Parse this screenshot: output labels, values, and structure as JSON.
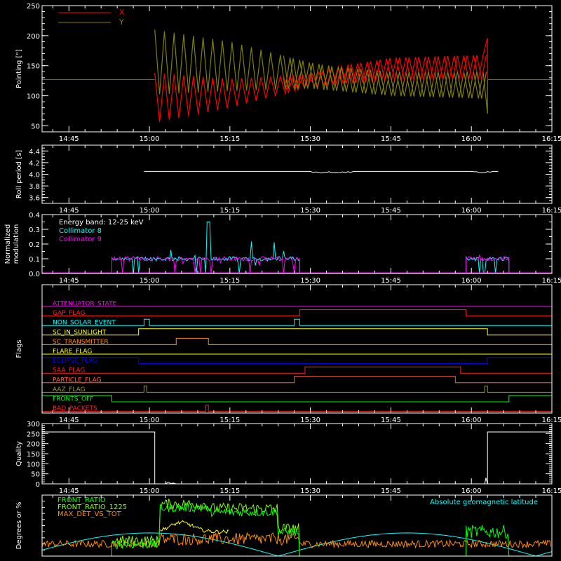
{
  "chart_data": [
    {
      "type": "line",
      "ylabel": "Pointing [\"]",
      "yticks": [
        50,
        100,
        150,
        200,
        250
      ],
      "ylim": [
        40,
        250
      ],
      "xlim_minutes": [
        40,
        135
      ],
      "xticks": [
        "14:45",
        "15:00",
        "15:15",
        "15:30",
        "15:45",
        "16:00",
        "16:15"
      ],
      "legend": [
        {
          "name": "X",
          "color": "#ff0000"
        },
        {
          "name": "Y",
          "color": "#808000"
        }
      ],
      "baseline": 127,
      "active_start": "15:01",
      "active_end": "16:03",
      "series": [
        {
          "name": "X",
          "color": "#ff0000",
          "upper_env": [
            [
              61,
              138
            ],
            [
              75,
              128
            ],
            [
              90,
              135
            ],
            [
              95,
              148
            ],
            [
              105,
              163
            ],
            [
              123,
              168
            ]
          ],
          "lower_env": [
            [
              61,
              55
            ],
            [
              75,
              80
            ],
            [
              90,
              115
            ],
            [
              95,
              120
            ],
            [
              105,
              125
            ],
            [
              123,
              128
            ]
          ],
          "spike_end": 196
        },
        {
          "name": "Y",
          "color": "#808000",
          "upper_env": [
            [
              61,
              210
            ],
            [
              75,
              190
            ],
            [
              90,
              155
            ],
            [
              95,
              148
            ],
            [
              105,
              140
            ],
            [
              123,
              140
            ]
          ],
          "lower_env": [
            [
              61,
              102
            ],
            [
              75,
              108
            ],
            [
              90,
              112
            ],
            [
              95,
              108
            ],
            [
              105,
              100
            ],
            [
              123,
              95
            ]
          ],
          "spike_end": 70
        }
      ]
    },
    {
      "type": "line",
      "ylabel": "Roll period [s]",
      "yticks": [
        "3.6",
        "3.8",
        "4.0",
        "4.2",
        "4.4"
      ],
      "ylim": [
        3.5,
        4.5
      ],
      "value": 4.05,
      "xticks": [
        "14:45",
        "15:00",
        "15:15",
        "15:30",
        "15:45",
        "16:00",
        "16:15"
      ]
    },
    {
      "type": "line",
      "ylabel": "Normalized modulation",
      "ylabel_lines": [
        "Normalized",
        "modulation"
      ],
      "yticks": [
        "0.0",
        "0.1",
        "0.2",
        "0.3",
        "0.4"
      ],
      "ylim": [
        0,
        0.4
      ],
      "xticks": [
        "14:45",
        "15:00",
        "15:15",
        "15:30",
        "15:45",
        "16:00",
        "16:15"
      ],
      "annotation": "Energy band: 12-25 keV",
      "intervals": [
        [
          "14:53",
          "15:28"
        ],
        [
          "15:59",
          "16:07"
        ]
      ],
      "series": [
        {
          "name": "Collimator 8",
          "color": "#00ffff",
          "typical": 0.1,
          "peak": 0.35
        },
        {
          "name": "Collimator 9",
          "color": "#ff00ff",
          "typical": 0.1,
          "peak": 0.18
        }
      ]
    },
    {
      "type": "line",
      "ylabel": "Flags",
      "xticks": [
        "14:45",
        "15:00",
        "15:15",
        "15:30",
        "15:45",
        "16:00",
        "16:15"
      ],
      "flags": [
        {
          "name": "ATTENUATOR_STATE",
          "color": "#ff00ff",
          "high": []
        },
        {
          "name": "GAP_FLAG",
          "color": "#ff2020",
          "high": [
            [
              "15:28",
              "15:59"
            ]
          ]
        },
        {
          "name": "NON_SOLAR_EVENT",
          "color": "#00ffff",
          "high": [
            [
              "14:59",
              "15:00"
            ],
            [
              "15:27",
              "15:28"
            ]
          ]
        },
        {
          "name": "SC_IN_SUNLIGHT",
          "color": "#ffff00",
          "high": [
            [
              "14:58",
              "16:03"
            ]
          ]
        },
        {
          "name": "SC_TRANSMITTER",
          "color": "#ff8c00",
          "high": [
            [
              "15:05",
              "15:11"
            ]
          ]
        },
        {
          "name": "FLARE_FLAG",
          "color": "#ffff00",
          "high": []
        },
        {
          "name": "ECLIPSE_FLAG",
          "color": "#0000ff",
          "high": [
            [
              "14:40",
              "14:58"
            ],
            [
              "16:03",
              "16:15"
            ]
          ]
        },
        {
          "name": "SAA_FLAG",
          "color": "#ff2020",
          "high": [
            [
              "15:29",
              "15:58"
            ]
          ]
        },
        {
          "name": "PARTICLE_FLAG",
          "color": "#ff6040",
          "high": [
            [
              "15:27",
              "15:57"
            ]
          ]
        },
        {
          "name": "AAZ_FLAG",
          "color": "#9a9a2a",
          "high": [
            [
              "14:59",
              "14:59.5"
            ],
            [
              "16:02.5",
              "16:03"
            ]
          ]
        },
        {
          "name": "FRONTS_OFF",
          "color": "#00ff00",
          "high": [
            [
              "14:40",
              "14:53"
            ],
            [
              "16:07",
              "16:15"
            ]
          ]
        },
        {
          "name": "BAD_PACKETS",
          "color": "#ff2020",
          "high": [
            [
              "15:10.5",
              "15:11"
            ]
          ]
        }
      ]
    },
    {
      "type": "line",
      "ylabel": "Quality",
      "yticks": [
        0,
        50,
        100,
        150,
        200,
        250,
        300
      ],
      "ylim": [
        0,
        300
      ],
      "xticks": [
        "14:45",
        "15:00",
        "15:15",
        "15:30",
        "15:45",
        "16:00",
        "16:15"
      ],
      "levels": [
        [
          "14:40",
          "15:01",
          258
        ],
        [
          "15:01",
          "16:03",
          0
        ],
        [
          "16:03",
          "16:15",
          258
        ]
      ]
    },
    {
      "type": "line",
      "ylabel": "Degrees or %",
      "ylim": [
        0,
        100
      ],
      "xticks": [],
      "annotation_right": "Absolute geomagnetic latitude",
      "series": [
        {
          "name": "FRONT_RATIO",
          "color": "#00ff00"
        },
        {
          "name": "FRONT_RATIO_1225",
          "color": "#7fff00"
        },
        {
          "name": "MAX_DET_VS_TOT",
          "color": "#ff8c00"
        },
        {
          "name": "Absolute geomagnetic latitude",
          "color": "#00ffff"
        }
      ]
    }
  ],
  "colors": {
    "background": "#000000",
    "axes": "#ffffff",
    "latitude": "#00ffff",
    "yellow_trace": "#ffff00"
  }
}
